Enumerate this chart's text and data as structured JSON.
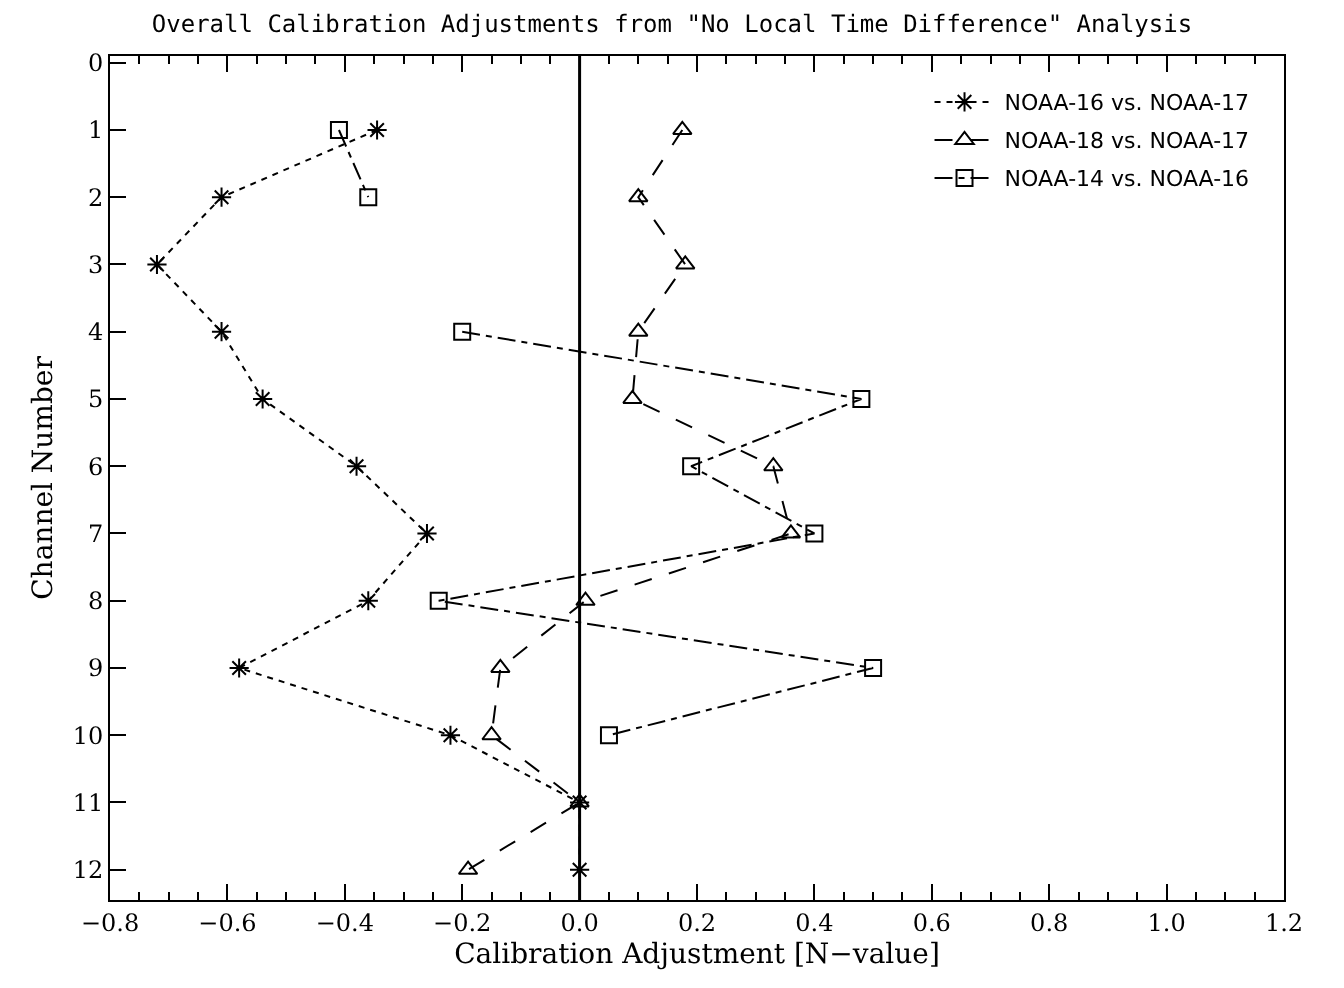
{
  "chart_data": {
    "type": "line",
    "title": "Overall Calibration Adjustments from \"No Local Time Difference\" Analysis",
    "xlabel": "Calibration Adjustment [N−value]",
    "ylabel": "Channel Number",
    "xlim": [
      -0.8,
      1.2
    ],
    "xticks": [
      {
        "value": -0.8,
        "label": "−0.8"
      },
      {
        "value": -0.6,
        "label": "−0.6"
      },
      {
        "value": -0.4,
        "label": "−0.4"
      },
      {
        "value": -0.2,
        "label": "−0.2"
      },
      {
        "value": 0,
        "label": "0.0"
      },
      {
        "value": 0.2,
        "label": "0.2"
      },
      {
        "value": 0.4,
        "label": "0.4"
      },
      {
        "value": 0.6,
        "label": "0.6"
      },
      {
        "value": 0.8,
        "label": "0.8"
      },
      {
        "value": 1,
        "label": "1.0"
      },
      {
        "value": 1.2,
        "label": "1.2"
      }
    ],
    "ylim": [
      12.45,
      -0.1
    ],
    "yticks": [
      0,
      1,
      2,
      3,
      4,
      5,
      6,
      7,
      8,
      9,
      10,
      11,
      12
    ],
    "grid": false,
    "legend": "top right",
    "ref_lines": [
      {
        "axis": "x",
        "value": 0,
        "color": "#000000",
        "line_style": "solid"
      }
    ],
    "series": [
      {
        "name": "NOAA-16 vs. NOAA-17",
        "color": "#000000",
        "marker": "cross",
        "line_style": "dotted",
        "x": [
          -0.345,
          -0.61,
          -0.72,
          -0.61,
          -0.54,
          -0.38,
          -0.26,
          -0.36,
          -0.58,
          -0.22,
          0,
          0
        ],
        "values": [
          1,
          2,
          3,
          4,
          5,
          6,
          7,
          8,
          9,
          10,
          11,
          12
        ]
      },
      {
        "name": "NOAA-18 vs. NOAA-17",
        "color": "#000000",
        "marker": "triangle",
        "line_style": "dashed",
        "x": [
          0.175,
          0.1,
          0.18,
          0.1,
          0.09,
          0.33,
          0.36,
          0.01,
          -0.135,
          -0.15,
          0,
          -0.19
        ],
        "values": [
          1,
          2,
          3,
          4,
          5,
          6,
          7,
          8,
          9,
          10,
          11,
          12
        ]
      },
      {
        "name": "NOAA-14 vs. NOAA-16",
        "color": "#000000",
        "marker": "square",
        "line_style": "dashdot",
        "x": [
          -0.41,
          -0.36,
          null,
          -0.2,
          0.48,
          0.19,
          0.4,
          -0.24,
          0.5,
          0.05
        ],
        "values": [
          1,
          2,
          null,
          4,
          5,
          6,
          7,
          8,
          9,
          10
        ]
      }
    ]
  }
}
